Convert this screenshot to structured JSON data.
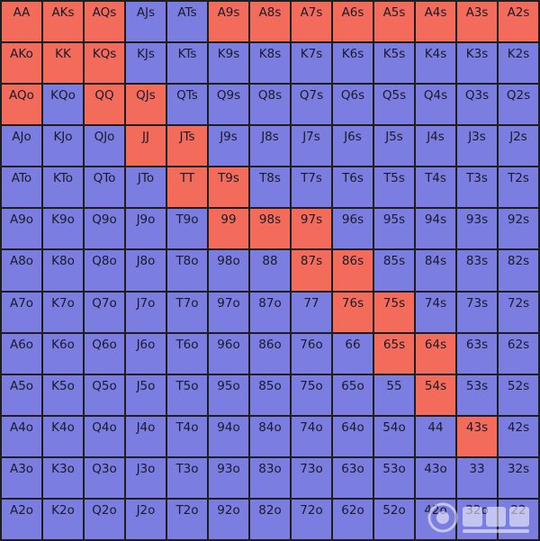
{
  "colors": {
    "raise": "#f26b5b",
    "fold": "#7b7de0",
    "border": "#1e1e1e"
  },
  "rows": [
    [
      [
        "AA",
        "r"
      ],
      [
        "AKs",
        "r"
      ],
      [
        "AQs",
        "r"
      ],
      [
        "AJs",
        "f"
      ],
      [
        "ATs",
        "f"
      ],
      [
        "A9s",
        "r"
      ],
      [
        "A8s",
        "r"
      ],
      [
        "A7s",
        "r"
      ],
      [
        "A6s",
        "r"
      ],
      [
        "A5s",
        "r"
      ],
      [
        "A4s",
        "r"
      ],
      [
        "A3s",
        "r"
      ],
      [
        "A2s",
        "r"
      ]
    ],
    [
      [
        "AKo",
        "r"
      ],
      [
        "KK",
        "r"
      ],
      [
        "KQs",
        "r"
      ],
      [
        "KJs",
        "f"
      ],
      [
        "KTs",
        "f"
      ],
      [
        "K9s",
        "f"
      ],
      [
        "K8s",
        "f"
      ],
      [
        "K7s",
        "f"
      ],
      [
        "K6s",
        "f"
      ],
      [
        "K5s",
        "f"
      ],
      [
        "K4s",
        "f"
      ],
      [
        "K3s",
        "f"
      ],
      [
        "K2s",
        "f"
      ]
    ],
    [
      [
        "AQo",
        "r"
      ],
      [
        "KQo",
        "f"
      ],
      [
        "QQ",
        "r"
      ],
      [
        "QJs",
        "r"
      ],
      [
        "QTs",
        "f"
      ],
      [
        "Q9s",
        "f"
      ],
      [
        "Q8s",
        "f"
      ],
      [
        "Q7s",
        "f"
      ],
      [
        "Q6s",
        "f"
      ],
      [
        "Q5s",
        "f"
      ],
      [
        "Q4s",
        "f"
      ],
      [
        "Q3s",
        "f"
      ],
      [
        "Q2s",
        "f"
      ]
    ],
    [
      [
        "AJo",
        "f"
      ],
      [
        "KJo",
        "f"
      ],
      [
        "QJo",
        "f"
      ],
      [
        "JJ",
        "r"
      ],
      [
        "JTs",
        "r"
      ],
      [
        "J9s",
        "f"
      ],
      [
        "J8s",
        "f"
      ],
      [
        "J7s",
        "f"
      ],
      [
        "J6s",
        "f"
      ],
      [
        "J5s",
        "f"
      ],
      [
        "J4s",
        "f"
      ],
      [
        "J3s",
        "f"
      ],
      [
        "J2s",
        "f"
      ]
    ],
    [
      [
        "ATo",
        "f"
      ],
      [
        "KTo",
        "f"
      ],
      [
        "QTo",
        "f"
      ],
      [
        "JTo",
        "f"
      ],
      [
        "TT",
        "r"
      ],
      [
        "T9s",
        "r"
      ],
      [
        "T8s",
        "f"
      ],
      [
        "T7s",
        "f"
      ],
      [
        "T6s",
        "f"
      ],
      [
        "T5s",
        "f"
      ],
      [
        "T4s",
        "f"
      ],
      [
        "T3s",
        "f"
      ],
      [
        "T2s",
        "f"
      ]
    ],
    [
      [
        "A9o",
        "f"
      ],
      [
        "K9o",
        "f"
      ],
      [
        "Q9o",
        "f"
      ],
      [
        "J9o",
        "f"
      ],
      [
        "T9o",
        "f"
      ],
      [
        "99",
        "r"
      ],
      [
        "98s",
        "r"
      ],
      [
        "97s",
        "r"
      ],
      [
        "96s",
        "f"
      ],
      [
        "95s",
        "f"
      ],
      [
        "94s",
        "f"
      ],
      [
        "93s",
        "f"
      ],
      [
        "92s",
        "f"
      ]
    ],
    [
      [
        "A8o",
        "f"
      ],
      [
        "K8o",
        "f"
      ],
      [
        "Q8o",
        "f"
      ],
      [
        "J8o",
        "f"
      ],
      [
        "T8o",
        "f"
      ],
      [
        "98o",
        "f"
      ],
      [
        "88",
        "f"
      ],
      [
        "87s",
        "r"
      ],
      [
        "86s",
        "r"
      ],
      [
        "85s",
        "f"
      ],
      [
        "84s",
        "f"
      ],
      [
        "83s",
        "f"
      ],
      [
        "82s",
        "f"
      ]
    ],
    [
      [
        "A7o",
        "f"
      ],
      [
        "K7o",
        "f"
      ],
      [
        "Q7o",
        "f"
      ],
      [
        "J7o",
        "f"
      ],
      [
        "T7o",
        "f"
      ],
      [
        "97o",
        "f"
      ],
      [
        "87o",
        "f"
      ],
      [
        "77",
        "f"
      ],
      [
        "76s",
        "r"
      ],
      [
        "75s",
        "r"
      ],
      [
        "74s",
        "f"
      ],
      [
        "73s",
        "f"
      ],
      [
        "72s",
        "f"
      ]
    ],
    [
      [
        "A6o",
        "f"
      ],
      [
        "K6o",
        "f"
      ],
      [
        "Q6o",
        "f"
      ],
      [
        "J6o",
        "f"
      ],
      [
        "T6o",
        "f"
      ],
      [
        "96o",
        "f"
      ],
      [
        "86o",
        "f"
      ],
      [
        "76o",
        "f"
      ],
      [
        "66",
        "f"
      ],
      [
        "65s",
        "r"
      ],
      [
        "64s",
        "r"
      ],
      [
        "63s",
        "f"
      ],
      [
        "62s",
        "f"
      ]
    ],
    [
      [
        "A5o",
        "f"
      ],
      [
        "K5o",
        "f"
      ],
      [
        "Q5o",
        "f"
      ],
      [
        "J5o",
        "f"
      ],
      [
        "T5o",
        "f"
      ],
      [
        "95o",
        "f"
      ],
      [
        "85o",
        "f"
      ],
      [
        "75o",
        "f"
      ],
      [
        "65o",
        "f"
      ],
      [
        "55",
        "f"
      ],
      [
        "54s",
        "r"
      ],
      [
        "53s",
        "f"
      ],
      [
        "52s",
        "f"
      ]
    ],
    [
      [
        "A4o",
        "f"
      ],
      [
        "K4o",
        "f"
      ],
      [
        "Q4o",
        "f"
      ],
      [
        "J4o",
        "f"
      ],
      [
        "T4o",
        "f"
      ],
      [
        "94o",
        "f"
      ],
      [
        "84o",
        "f"
      ],
      [
        "74o",
        "f"
      ],
      [
        "64o",
        "f"
      ],
      [
        "54o",
        "f"
      ],
      [
        "44",
        "f"
      ],
      [
        "43s",
        "r"
      ],
      [
        "42s",
        "f"
      ]
    ],
    [
      [
        "A3o",
        "f"
      ],
      [
        "K3o",
        "f"
      ],
      [
        "Q3o",
        "f"
      ],
      [
        "J3o",
        "f"
      ],
      [
        "T3o",
        "f"
      ],
      [
        "93o",
        "f"
      ],
      [
        "83o",
        "f"
      ],
      [
        "73o",
        "f"
      ],
      [
        "63o",
        "f"
      ],
      [
        "53o",
        "f"
      ],
      [
        "43o",
        "f"
      ],
      [
        "33",
        "f"
      ],
      [
        "32s",
        "f"
      ]
    ],
    [
      [
        "A2o",
        "f"
      ],
      [
        "K2o",
        "f"
      ],
      [
        "Q2o",
        "f"
      ],
      [
        "J2o",
        "f"
      ],
      [
        "T2o",
        "f"
      ],
      [
        "92o",
        "f"
      ],
      [
        "82o",
        "f"
      ],
      [
        "72o",
        "f"
      ],
      [
        "62o",
        "f"
      ],
      [
        "52o",
        "f"
      ],
      [
        "42o",
        "f"
      ],
      [
        "32o",
        "f"
      ],
      [
        "22",
        "f"
      ]
    ]
  ],
  "watermark": {
    "icon": "poker-watermark-icon"
  }
}
